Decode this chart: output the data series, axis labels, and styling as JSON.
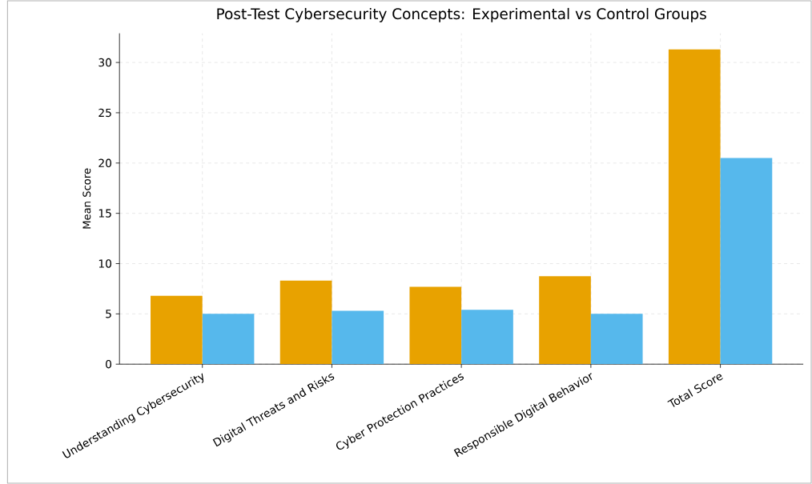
{
  "chart_data": {
    "type": "bar",
    "title": "Post-Test Cybersecurity Concepts: Experimental vs Control Groups",
    "ylabel": "Mean Score",
    "categories": [
      "Understanding Cybersecurity",
      "Digital Threats and Risks",
      "Cyber Protection Practices",
      "Responsible Digital Behavior",
      "Total Score"
    ],
    "series": [
      {
        "color": "#e8a200",
        "values": [
          6.8,
          8.3,
          7.7,
          8.75,
          31.3
        ]
      },
      {
        "color": "#56b8ec",
        "values": [
          5.0,
          5.3,
          5.4,
          5.0,
          20.5
        ]
      }
    ],
    "ylim": [
      0,
      32.9
    ],
    "yticks": [
      0,
      5,
      10,
      15,
      20,
      25,
      30
    ],
    "grid": true
  }
}
